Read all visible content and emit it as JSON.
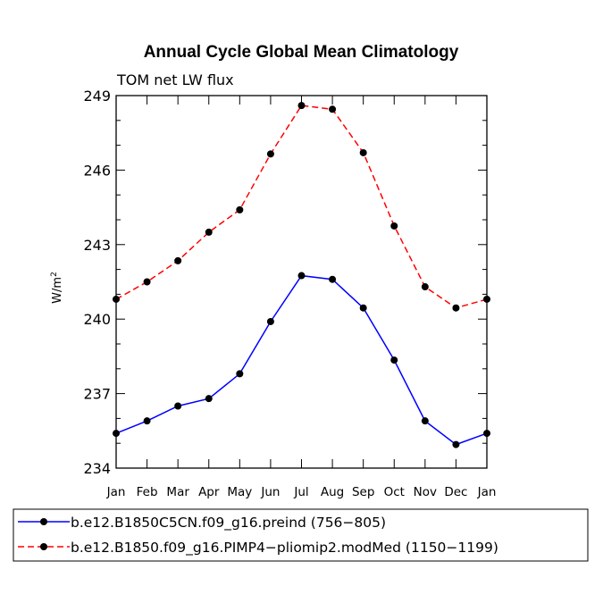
{
  "chart_data": {
    "type": "line",
    "title": "Annual Cycle Global Mean Climatology",
    "subtitle": "TOM net LW flux",
    "ylabel": "W/m",
    "ylabel_sup": "2",
    "xlabel": "",
    "ylim": [
      234,
      249
    ],
    "yticks": [
      234,
      237,
      240,
      243,
      246,
      249
    ],
    "categories": [
      "Jan",
      "Feb",
      "Mar",
      "Apr",
      "May",
      "Jun",
      "Jul",
      "Aug",
      "Sep",
      "Oct",
      "Nov",
      "Dec",
      "Jan"
    ],
    "series": [
      {
        "name": "b.e12.B1850C5CN.f09_g16.preind (756−805)",
        "color": "#0000ff",
        "dash": "solid",
        "values": [
          235.4,
          235.9,
          236.5,
          236.8,
          237.8,
          239.9,
          241.75,
          241.6,
          240.45,
          238.35,
          235.9,
          234.95,
          235.4
        ]
      },
      {
        "name": "b.e12.B1850.f09_g16.PIMP4−pliomip2.modMed (1150−1199)",
        "color": "#ff0000",
        "dash": "dashed",
        "values": [
          240.8,
          241.5,
          242.35,
          243.5,
          244.4,
          246.65,
          248.6,
          248.45,
          246.7,
          243.75,
          241.3,
          240.45,
          240.8
        ]
      }
    ],
    "legend_position": "bottom"
  }
}
